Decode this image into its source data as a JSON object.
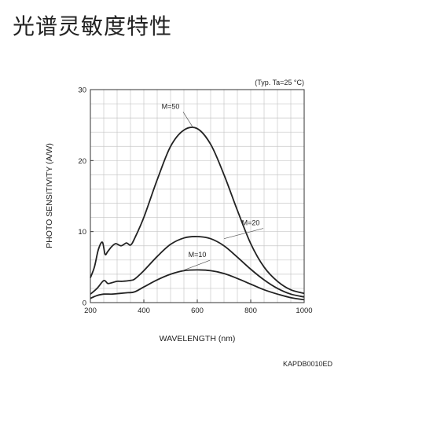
{
  "page": {
    "title": "光谱灵敏度特性"
  },
  "chart_data": {
    "type": "line",
    "title": "",
    "condition_note": "(Typ. Ta=25 °C)",
    "code": "KAPDB0010ED",
    "xlabel": "WAVELENGTH (nm)",
    "ylabel": "PHOTO SENSITIVITY (A/W)",
    "xlim": [
      200,
      1000
    ],
    "ylim": [
      0,
      30
    ],
    "x_ticks": [
      200,
      400,
      600,
      800,
      1000
    ],
    "x_tick_labels": [
      "200",
      "400",
      "600",
      "800",
      "1000"
    ],
    "y_ticks": [
      0,
      10,
      20,
      30
    ],
    "y_tick_labels": [
      "0",
      "10",
      "20",
      "30"
    ],
    "grid": true,
    "legend": "none",
    "series": [
      {
        "name": "M=50",
        "x": [
          200,
          215,
          230,
          245,
          255,
          265,
          280,
          295,
          315,
          335,
          350,
          365,
          400,
          450,
          500,
          550,
          600,
          650,
          700,
          750,
          800,
          850,
          900,
          950,
          1000
        ],
        "y": [
          3.5,
          5,
          7.5,
          8.5,
          6.8,
          7.2,
          7.9,
          8.3,
          8.0,
          8.4,
          8.1,
          9.0,
          12.0,
          17.3,
          22.0,
          24.3,
          24.5,
          22.3,
          18.0,
          13.0,
          8.3,
          5.0,
          3.0,
          1.8,
          1.3
        ]
      },
      {
        "name": "M=20",
        "x": [
          200,
          225,
          250,
          265,
          280,
          300,
          320,
          345,
          365,
          400,
          450,
          500,
          550,
          600,
          650,
          700,
          750,
          800,
          850,
          900,
          950,
          1000
        ],
        "y": [
          1.2,
          2.0,
          3.1,
          2.7,
          2.8,
          3.0,
          3.0,
          3.1,
          3.3,
          4.5,
          6.5,
          8.2,
          9.1,
          9.3,
          9.0,
          8.0,
          6.4,
          4.7,
          3.2,
          2.0,
          1.2,
          0.8
        ]
      },
      {
        "name": "M=10",
        "x": [
          200,
          225,
          250,
          280,
          310,
          340,
          365,
          400,
          450,
          500,
          550,
          600,
          650,
          700,
          750,
          800,
          850,
          900,
          950,
          1000
        ],
        "y": [
          0.6,
          1.0,
          1.2,
          1.2,
          1.3,
          1.4,
          1.5,
          2.2,
          3.2,
          4.0,
          4.5,
          4.6,
          4.5,
          4.1,
          3.4,
          2.6,
          1.8,
          1.2,
          0.7,
          0.4
        ]
      }
    ],
    "annotations": [
      "M=50",
      "M=20",
      "M=10"
    ]
  }
}
